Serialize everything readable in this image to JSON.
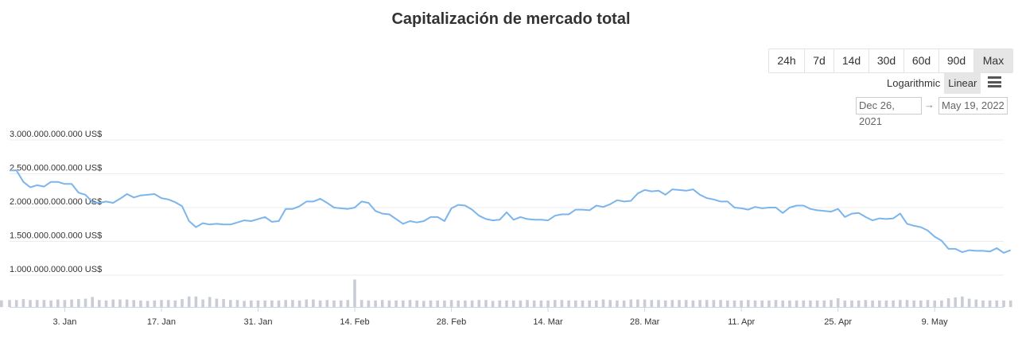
{
  "title": "Capitalización de mercado total",
  "range_buttons": [
    "24h",
    "7d",
    "14d",
    "30d",
    "60d",
    "90d",
    "Max"
  ],
  "active_range": "Max",
  "scale": {
    "log_label": "Logarithmic",
    "linear_label": "Linear",
    "active": "Linear"
  },
  "date_range": {
    "from": "Dec 26, 2021",
    "arrow": "→",
    "to": "May 19, 2022"
  },
  "colors": {
    "line": "#7cb5ec",
    "volume": "#cbcdd6",
    "grid": "#ececec"
  },
  "chart_data": {
    "type": "line",
    "title": "Capitalización de mercado total",
    "x_start": "2021-12-26",
    "x_end": "2022-05-19",
    "y_ticks": [
      {
        "value": 1000000000000,
        "label": "1.000.000.000.000 US$"
      },
      {
        "value": 1500000000000,
        "label": "1.500.000.000.000 US$"
      },
      {
        "value": 2000000000000,
        "label": "2.000.000.000.000 US$"
      },
      {
        "value": 2500000000000,
        "label": "2.500.000.000.000 US$"
      },
      {
        "value": 3000000000000,
        "label": "3.000.000.000.000 US$"
      }
    ],
    "ylim": [
      1000000000000,
      3000000000000
    ],
    "x_ticks": [
      {
        "date": "2022-01-03",
        "label": "3. Jan"
      },
      {
        "date": "2022-01-17",
        "label": "17. Jan"
      },
      {
        "date": "2022-01-31",
        "label": "31. Jan"
      },
      {
        "date": "2022-02-14",
        "label": "14. Feb"
      },
      {
        "date": "2022-02-28",
        "label": "28. Feb"
      },
      {
        "date": "2022-03-14",
        "label": "14. Mar"
      },
      {
        "date": "2022-03-28",
        "label": "28. Mar"
      },
      {
        "date": "2022-04-11",
        "label": "11. Apr"
      },
      {
        "date": "2022-04-25",
        "label": "25. Apr"
      },
      {
        "date": "2022-05-09",
        "label": "9. May"
      }
    ],
    "market_cap": [
      2.55,
      2.55,
      2.38,
      2.3,
      2.33,
      2.31,
      2.38,
      2.38,
      2.35,
      2.35,
      2.22,
      2.19,
      2.08,
      2.07,
      2.09,
      2.07,
      2.13,
      2.2,
      2.15,
      2.18,
      2.19,
      2.2,
      2.14,
      2.12,
      2.08,
      2.02,
      1.8,
      1.71,
      1.77,
      1.75,
      1.76,
      1.75,
      1.75,
      1.78,
      1.81,
      1.8,
      1.83,
      1.86,
      1.79,
      1.8,
      1.98,
      1.98,
      2.02,
      2.09,
      2.09,
      2.13,
      2.07,
      2.0,
      1.99,
      1.98,
      2.0,
      2.09,
      2.07,
      1.95,
      1.91,
      1.9,
      1.83,
      1.76,
      1.8,
      1.78,
      1.8,
      1.86,
      1.86,
      1.8,
      1.99,
      2.04,
      2.03,
      1.97,
      1.88,
      1.83,
      1.81,
      1.82,
      1.93,
      1.82,
      1.86,
      1.83,
      1.82,
      1.82,
      1.81,
      1.88,
      1.9,
      1.9,
      1.97,
      1.97,
      1.96,
      2.03,
      2.01,
      2.05,
      2.11,
      2.09,
      2.1,
      2.21,
      2.26,
      2.24,
      2.25,
      2.19,
      2.27,
      2.26,
      2.25,
      2.27,
      2.19,
      2.14,
      2.12,
      2.09,
      2.09,
      2.0,
      1.99,
      1.97,
      2.01,
      1.99,
      2.0,
      2.0,
      1.92,
      2.0,
      2.03,
      2.03,
      1.98,
      1.96,
      1.95,
      1.94,
      1.98,
      1.86,
      1.91,
      1.92,
      1.86,
      1.81,
      1.84,
      1.83,
      1.84,
      1.91,
      1.76,
      1.73,
      1.71,
      1.66,
      1.57,
      1.51,
      1.39,
      1.39,
      1.34,
      1.37,
      1.36,
      1.36,
      1.35,
      1.4,
      1.33,
      1.37
    ],
    "volume": [
      0.16,
      0.16,
      0.18,
      0.16,
      0.16,
      0.16,
      0.15,
      0.17,
      0.16,
      0.17,
      0.18,
      0.19,
      0.23,
      0.16,
      0.15,
      0.17,
      0.17,
      0.17,
      0.16,
      0.15,
      0.14,
      0.15,
      0.16,
      0.16,
      0.15,
      0.18,
      0.24,
      0.24,
      0.17,
      0.23,
      0.19,
      0.18,
      0.16,
      0.16,
      0.14,
      0.15,
      0.15,
      0.15,
      0.15,
      0.15,
      0.16,
      0.16,
      0.15,
      0.17,
      0.17,
      0.15,
      0.16,
      0.15,
      0.15,
      0.16,
      0.63,
      0.16,
      0.15,
      0.15,
      0.16,
      0.15,
      0.15,
      0.15,
      0.16,
      0.15,
      0.14,
      0.15,
      0.15,
      0.15,
      0.16,
      0.15,
      0.15,
      0.15,
      0.16,
      0.16,
      0.14,
      0.15,
      0.15,
      0.15,
      0.15,
      0.16,
      0.15,
      0.15,
      0.15,
      0.16,
      0.16,
      0.15,
      0.15,
      0.15,
      0.15,
      0.15,
      0.17,
      0.16,
      0.15,
      0.15,
      0.17,
      0.17,
      0.17,
      0.16,
      0.16,
      0.15,
      0.16,
      0.16,
      0.16,
      0.15,
      0.16,
      0.16,
      0.16,
      0.16,
      0.15,
      0.15,
      0.15,
      0.16,
      0.15,
      0.15,
      0.15,
      0.16,
      0.15,
      0.15,
      0.15,
      0.15,
      0.15,
      0.15,
      0.15,
      0.16,
      0.2,
      0.15,
      0.15,
      0.15,
      0.16,
      0.15,
      0.15,
      0.15,
      0.15,
      0.16,
      0.16,
      0.15,
      0.15,
      0.16,
      0.15,
      0.15,
      0.2,
      0.22,
      0.24,
      0.19,
      0.17,
      0.15,
      0.15,
      0.15,
      0.15,
      0.15,
      0.15,
      0.15
    ]
  }
}
